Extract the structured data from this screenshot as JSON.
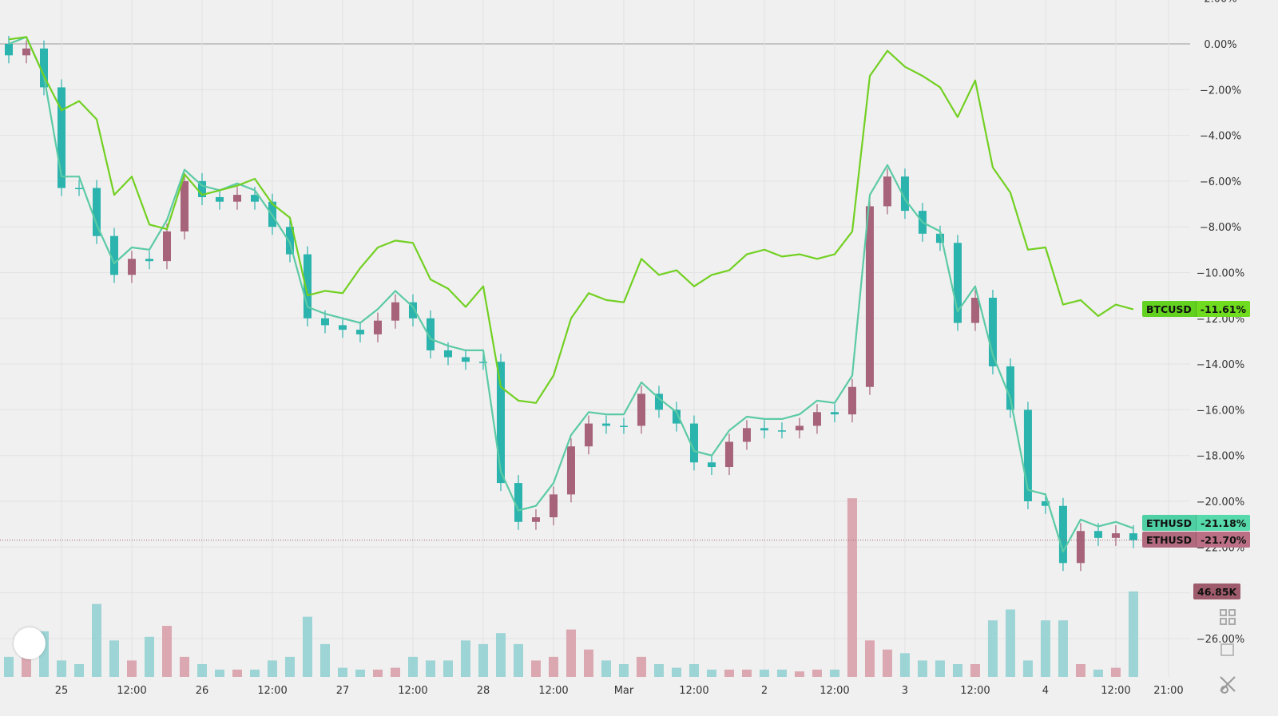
{
  "chart_data": {
    "type": "candlestick+line",
    "x": [
      "Feb 24 15:00",
      "Feb 24 18:00",
      "Feb 24 21:00",
      "Feb 25 00:00",
      "Feb 25 03:00",
      "Feb 25 06:00",
      "Feb 25 09:00",
      "Feb 25 12:00",
      "Feb 25 15:00",
      "Feb 25 18:00",
      "Feb 25 21:00",
      "Feb 26 00:00",
      "Feb 26 03:00",
      "Feb 26 06:00",
      "Feb 26 09:00",
      "Feb 26 12:00",
      "Feb 26 15:00",
      "Feb 26 18:00",
      "Feb 26 21:00",
      "Feb 27 00:00",
      "Feb 27 03:00",
      "Feb 27 06:00",
      "Feb 27 09:00",
      "Feb 27 12:00",
      "Feb 27 15:00",
      "Feb 27 18:00",
      "Feb 27 21:00",
      "Feb 28 00:00",
      "Feb 28 03:00",
      "Feb 28 06:00",
      "Feb 28 09:00",
      "Feb 28 12:00",
      "Feb 28 15:00",
      "Feb 28 18:00",
      "Feb 28 21:00",
      "Mar 1 00:00",
      "Mar 1 03:00",
      "Mar 1 06:00",
      "Mar 1 09:00",
      "Mar 1 12:00",
      "Mar 1 15:00",
      "Mar 1 18:00",
      "Mar 1 21:00",
      "Mar 2 00:00",
      "Mar 2 03:00",
      "Mar 2 06:00",
      "Mar 2 09:00",
      "Mar 2 12:00",
      "Mar 2 15:00",
      "Mar 2 18:00",
      "Mar 2 21:00",
      "Mar 3 00:00",
      "Mar 3 03:00",
      "Mar 3 06:00",
      "Mar 3 09:00",
      "Mar 3 12:00",
      "Mar 3 15:00",
      "Mar 3 18:00",
      "Mar 3 21:00",
      "Mar 4 00:00",
      "Mar 4 03:00",
      "Mar 4 06:00",
      "Mar 4 09:00",
      "Mar 4 12:00",
      "Mar 4 15:00"
    ],
    "series": [
      {
        "name": "ETHUSD",
        "kind": "candles",
        "color_up": "#a6637a",
        "color_down": "#2bb3ad",
        "close": [
          -0.5,
          -0.2,
          -1.9,
          -6.3,
          -6.3,
          -8.4,
          -10.1,
          -9.4,
          -9.5,
          -8.2,
          -6.0,
          -6.7,
          -6.9,
          -6.6,
          -6.9,
          -8.0,
          -9.2,
          -12.0,
          -12.3,
          -12.5,
          -12.7,
          -12.1,
          -11.3,
          -12.0,
          -13.4,
          -13.7,
          -13.9,
          -13.9,
          -19.2,
          -20.9,
          -20.7,
          -19.7,
          -17.6,
          -16.6,
          -16.7,
          -16.7,
          -15.3,
          -16.0,
          -16.6,
          -18.3,
          -18.5,
          -17.4,
          -16.8,
          -16.9,
          -16.9,
          -16.7,
          -16.1,
          -16.2,
          -15.0,
          -7.1,
          -5.8,
          -7.3,
          -8.3,
          -8.7,
          -12.2,
          -11.1,
          -14.1,
          -16.0,
          -20.0,
          -20.2,
          -22.7,
          -21.3,
          -21.6,
          -21.4,
          -21.7
        ],
        "last_label": "-21.70%"
      },
      {
        "name": "ETHUSD",
        "kind": "line",
        "color": "#5ccaa6",
        "values": [
          0.0,
          0.3,
          -1.4,
          -5.8,
          -5.8,
          -7.9,
          -9.6,
          -8.9,
          -9.0,
          -7.7,
          -5.5,
          -6.2,
          -6.4,
          -6.1,
          -6.4,
          -7.5,
          -8.7,
          -11.5,
          -11.8,
          -12.0,
          -12.2,
          -11.6,
          -10.8,
          -11.5,
          -12.9,
          -13.2,
          -13.4,
          -13.4,
          -18.7,
          -20.4,
          -20.2,
          -19.2,
          -17.1,
          -16.1,
          -16.2,
          -16.2,
          -14.8,
          -15.5,
          -16.1,
          -17.8,
          -18.0,
          -16.9,
          -16.3,
          -16.4,
          -16.4,
          -16.2,
          -15.6,
          -15.7,
          -14.5,
          -6.6,
          -5.3,
          -6.8,
          -7.8,
          -8.2,
          -11.7,
          -10.6,
          -13.6,
          -15.5,
          -19.5,
          -19.7,
          -22.2,
          -20.8,
          -21.1,
          -20.9,
          -21.18
        ],
        "last_label": "-21.18%"
      },
      {
        "name": "BTCUSD",
        "kind": "line",
        "color": "#72d022",
        "values": [
          0.2,
          0.3,
          -1.4,
          -2.9,
          -2.5,
          -3.3,
          -6.6,
          -5.8,
          -7.9,
          -8.1,
          -5.7,
          -6.6,
          -6.4,
          -6.2,
          -5.9,
          -7.0,
          -7.6,
          -11.0,
          -10.8,
          -10.9,
          -9.8,
          -8.9,
          -8.6,
          -8.7,
          -10.3,
          -10.7,
          -11.5,
          -10.6,
          -15.0,
          -15.6,
          -15.7,
          -14.5,
          -12.0,
          -10.9,
          -11.2,
          -11.3,
          -9.4,
          -10.1,
          -9.9,
          -10.6,
          -10.1,
          -9.9,
          -9.2,
          -9.0,
          -9.3,
          -9.2,
          -9.4,
          -9.2,
          -8.2,
          -1.4,
          -0.3,
          -1.0,
          -1.4,
          -1.9,
          -3.2,
          -1.6,
          -5.4,
          -6.5,
          -9.0,
          -8.9,
          -11.4,
          -11.2,
          -11.9,
          -11.4,
          -11.61
        ],
        "last_label": "-11.61%"
      }
    ],
    "volume": {
      "unit": "K",
      "values": [
        11,
        15,
        25,
        9,
        7,
        40,
        20,
        9,
        22,
        28,
        11,
        7,
        4,
        4,
        4,
        9,
        11,
        33,
        18,
        5,
        4,
        4,
        5,
        11,
        9,
        9,
        20,
        18,
        24,
        18,
        9,
        11,
        26,
        15,
        9,
        7,
        11,
        7,
        5,
        7,
        4,
        4,
        4,
        4,
        4,
        3,
        4,
        4,
        98,
        20,
        15,
        13,
        9,
        9,
        7,
        7,
        31,
        37,
        9,
        31,
        31,
        7,
        4,
        5,
        46.85
      ],
      "last_label": "46.85K",
      "color_up": "#d8a0aa",
      "color_down": "#94d0d2"
    },
    "y_axis": {
      "unit": "%",
      "ylim": [
        -28,
        2
      ],
      "tick_labels": [
        "2.00%",
        "0.00%",
        "−2.00%",
        "−4.00%",
        "−6.00%",
        "−8.00%",
        "−10.00%",
        "−12.00%",
        "−14.00%",
        "−16.00%",
        "−18.00%",
        "−20.00%",
        "−22.00%",
        "−26.00%"
      ],
      "tick_values": [
        2,
        0,
        -2,
        -4,
        -6,
        -8,
        -10,
        -12,
        -14,
        -16,
        -18,
        -20,
        -22,
        -26
      ],
      "side": "right"
    },
    "x_axis": {
      "ticks": [
        {
          "label": "25",
          "time": "Feb 25 00:00"
        },
        {
          "label": "12:00",
          "time": "Feb 25 12:00"
        },
        {
          "label": "26",
          "time": "Feb 26 00:00"
        },
        {
          "label": "12:00",
          "time": "Feb 26 12:00"
        },
        {
          "label": "27",
          "time": "Feb 27 00:00"
        },
        {
          "label": "12:00",
          "time": "Feb 27 12:00"
        },
        {
          "label": "28",
          "time": "Feb 28 00:00"
        },
        {
          "label": "12:00",
          "time": "Feb 28 12:00"
        },
        {
          "label": "Mar",
          "time": "Mar 1 00:00"
        },
        {
          "label": "12:00",
          "time": "Mar 1 12:00"
        },
        {
          "label": "2",
          "time": "Mar 2 00:00"
        },
        {
          "label": "12:00",
          "time": "Mar 2 12:00"
        },
        {
          "label": "3",
          "time": "Mar 3 00:00"
        },
        {
          "label": "12:00",
          "time": "Mar 3 12:00"
        },
        {
          "label": "4",
          "time": "Mar 4 00:00"
        },
        {
          "label": "12:00",
          "time": "Mar 4 12:00"
        },
        {
          "label": "21:00",
          "time": "Mar 4 21:00"
        }
      ]
    },
    "grid": true,
    "zero_line": true
  },
  "badges": {
    "btc": {
      "symbol": "BTCUSD",
      "value": "-11.61%",
      "color": "#62d11f"
    },
    "eth_line": {
      "symbol": "ETHUSD",
      "value": "-21.18%",
      "color": "#4fd0a4"
    },
    "eth_main": {
      "symbol": "ETHUSD",
      "value": "-21.70%",
      "color": "#b26a7e"
    },
    "volume": {
      "value": "46.85K",
      "color": "#9e5b6b"
    }
  },
  "controls": {
    "icons": [
      "grid-layout-icon",
      "square-icon",
      "settings-close-icon"
    ]
  }
}
